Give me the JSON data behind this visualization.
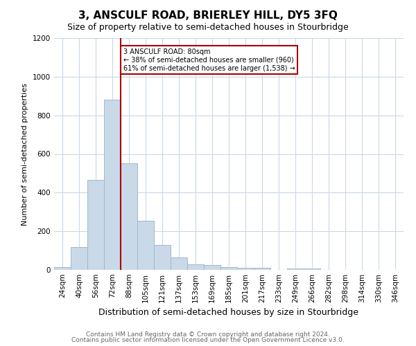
{
  "title": "3, ANSCULF ROAD, BRIERLEY HILL, DY5 3FQ",
  "subtitle": "Size of property relative to semi-detached houses in Stourbridge",
  "xlabel": "Distribution of semi-detached houses by size in Stourbridge",
  "ylabel": "Number of semi-detached properties",
  "footnote1": "Contains HM Land Registry data © Crown copyright and database right 2024.",
  "footnote2": "Contains public sector information licensed under the Open Government Licence v3.0.",
  "annotation_line1": "3 ANSCULF ROAD: 80sqm",
  "annotation_line2": "← 38% of semi-detached houses are smaller (960)",
  "annotation_line3": "61% of semi-detached houses are larger (1,538) →",
  "bar_color": "#c9d9e8",
  "bar_edge_color": "#a0b8cc",
  "ref_line_color": "#aa0000",
  "ref_line_x": 4,
  "categories": [
    "24sqm",
    "40sqm",
    "56sqm",
    "72sqm",
    "88sqm",
    "105sqm",
    "121sqm",
    "137sqm",
    "153sqm",
    "169sqm",
    "185sqm",
    "201sqm",
    "217sqm",
    "233sqm",
    "249sqm",
    "266sqm",
    "282sqm",
    "298sqm",
    "314sqm",
    "330sqm",
    "346sqm"
  ],
  "values": [
    15,
    120,
    465,
    880,
    550,
    255,
    130,
    65,
    30,
    25,
    15,
    10,
    10,
    0,
    8,
    8,
    0,
    0,
    0,
    0,
    0
  ],
  "ylim": [
    0,
    1200
  ],
  "yticks": [
    0,
    200,
    400,
    600,
    800,
    1000,
    1200
  ],
  "background_color": "#ffffff",
  "grid_color": "#c8d8e8",
  "title_fontsize": 11,
  "subtitle_fontsize": 9,
  "ylabel_fontsize": 8,
  "xlabel_fontsize": 9,
  "tick_fontsize": 7.5,
  "footnote_fontsize": 6.5,
  "footnote_color": "#666666"
}
